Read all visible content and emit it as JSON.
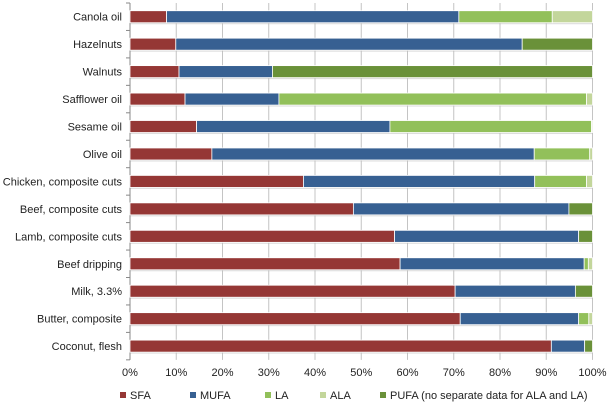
{
  "chart_data": {
    "type": "bar",
    "orientation": "horizontal",
    "stacked": "percent",
    "xlim": [
      0,
      100
    ],
    "x_ticks": [
      "0%",
      "10%",
      "20%",
      "30%",
      "40%",
      "50%",
      "60%",
      "70%",
      "80%",
      "90%",
      "100%"
    ],
    "grid": "vertical",
    "legend_position": "bottom",
    "categories": [
      "Canola oil",
      "Hazelnuts",
      "Walnuts",
      "Safflower oil",
      "Sesame oil",
      "Olive oil",
      "Chicken, composite cuts",
      "Beef, composite cuts",
      "Lamb, composite cuts",
      "Beef dripping",
      "Milk, 3.3%",
      "Butter, composite",
      "Coconut, flesh"
    ],
    "series": [
      {
        "name": "SFA",
        "color": "#953735",
        "values": [
          7.9,
          9.9,
          10.6,
          11.9,
          14.4,
          17.7,
          37.5,
          48.3,
          57.2,
          58.4,
          70.3,
          71.4,
          91.1
        ]
      },
      {
        "name": "MUFA",
        "color": "#376092",
        "values": [
          63.2,
          74.9,
          20.2,
          20.3,
          41.8,
          69.7,
          50.0,
          46.6,
          39.8,
          39.8,
          26.0,
          25.6,
          7.2
        ]
      },
      {
        "name": "LA",
        "color": "#92c05a",
        "values": [
          20.2,
          0,
          0,
          66.5,
          43.6,
          12.0,
          11.2,
          0,
          0,
          0.9,
          0,
          2.2,
          0
        ]
      },
      {
        "name": "ALA",
        "color": "#c3d69b",
        "values": [
          8.7,
          0,
          0,
          1.3,
          0.2,
          0.6,
          1.3,
          0,
          0,
          0.9,
          0,
          0.8,
          0
        ]
      },
      {
        "name": "PUFA (no separate data for ALA and LA)",
        "color": "#6a9139",
        "values": [
          0,
          15.2,
          69.2,
          0,
          0,
          0,
          0,
          5.1,
          3.0,
          0,
          3.7,
          0,
          1.7
        ]
      }
    ]
  }
}
